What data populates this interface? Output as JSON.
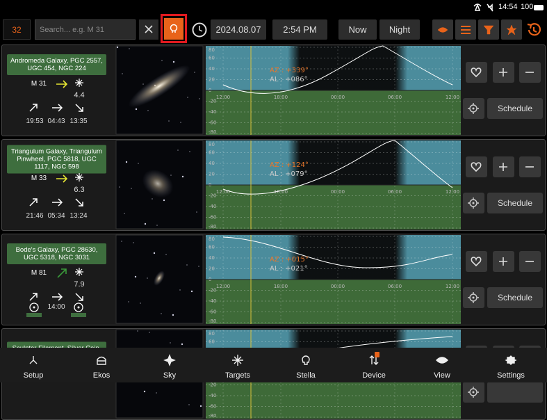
{
  "status_bar": {
    "time": "14:54",
    "battery": "100"
  },
  "toolbar": {
    "count": "32",
    "search_placeholder": "Search... e.g. M 31",
    "date": "2024.08.07",
    "time": "2:54 PM",
    "now_button": "Now",
    "night_button": "Night"
  },
  "altitude_axis": {
    "yticks": [
      "80",
      "60",
      "40",
      "20",
      "0",
      "-20",
      "-40",
      "-60",
      "-80"
    ],
    "xticks": [
      "12:00",
      "18:00",
      "00:00",
      "06:00",
      "12:00"
    ]
  },
  "targets": [
    {
      "names": "Andromeda Galaxy, PGC 2557, UGC 454, NGC 224",
      "designation": "M 31",
      "magnitude": "4.4",
      "rise": "19:53",
      "transit": "04:43",
      "set": "13:35",
      "azimuth": "AZ : +339°",
      "altitude": "AL : +086°",
      "schedule_button": "Schedule"
    },
    {
      "names": "Triangulum Galaxy, Triangulum Pinwheel, PGC 5818, UGC 1117, NGC 598",
      "designation": "M 33",
      "magnitude": "6.3",
      "rise": "21:46",
      "transit": "05:34",
      "set": "13:24",
      "azimuth": "AZ : +124°",
      "altitude": "AL : +079°",
      "schedule_button": "Schedule"
    },
    {
      "names": "Bode's Galaxy, PGC 28630, UGC 5318, NGC 3031",
      "designation": "M 81",
      "magnitude": "7.9",
      "transit": "14:00",
      "azimuth": "AZ : +015°",
      "altitude": "AL : +021°",
      "schedule_button": "Schedule"
    },
    {
      "names": "Sculptor Filament, Silver Coin,"
    }
  ],
  "nav": [
    "Setup",
    "Ekos",
    "Sky",
    "Targets",
    "Stella",
    "Device",
    "View",
    "Settings"
  ]
}
